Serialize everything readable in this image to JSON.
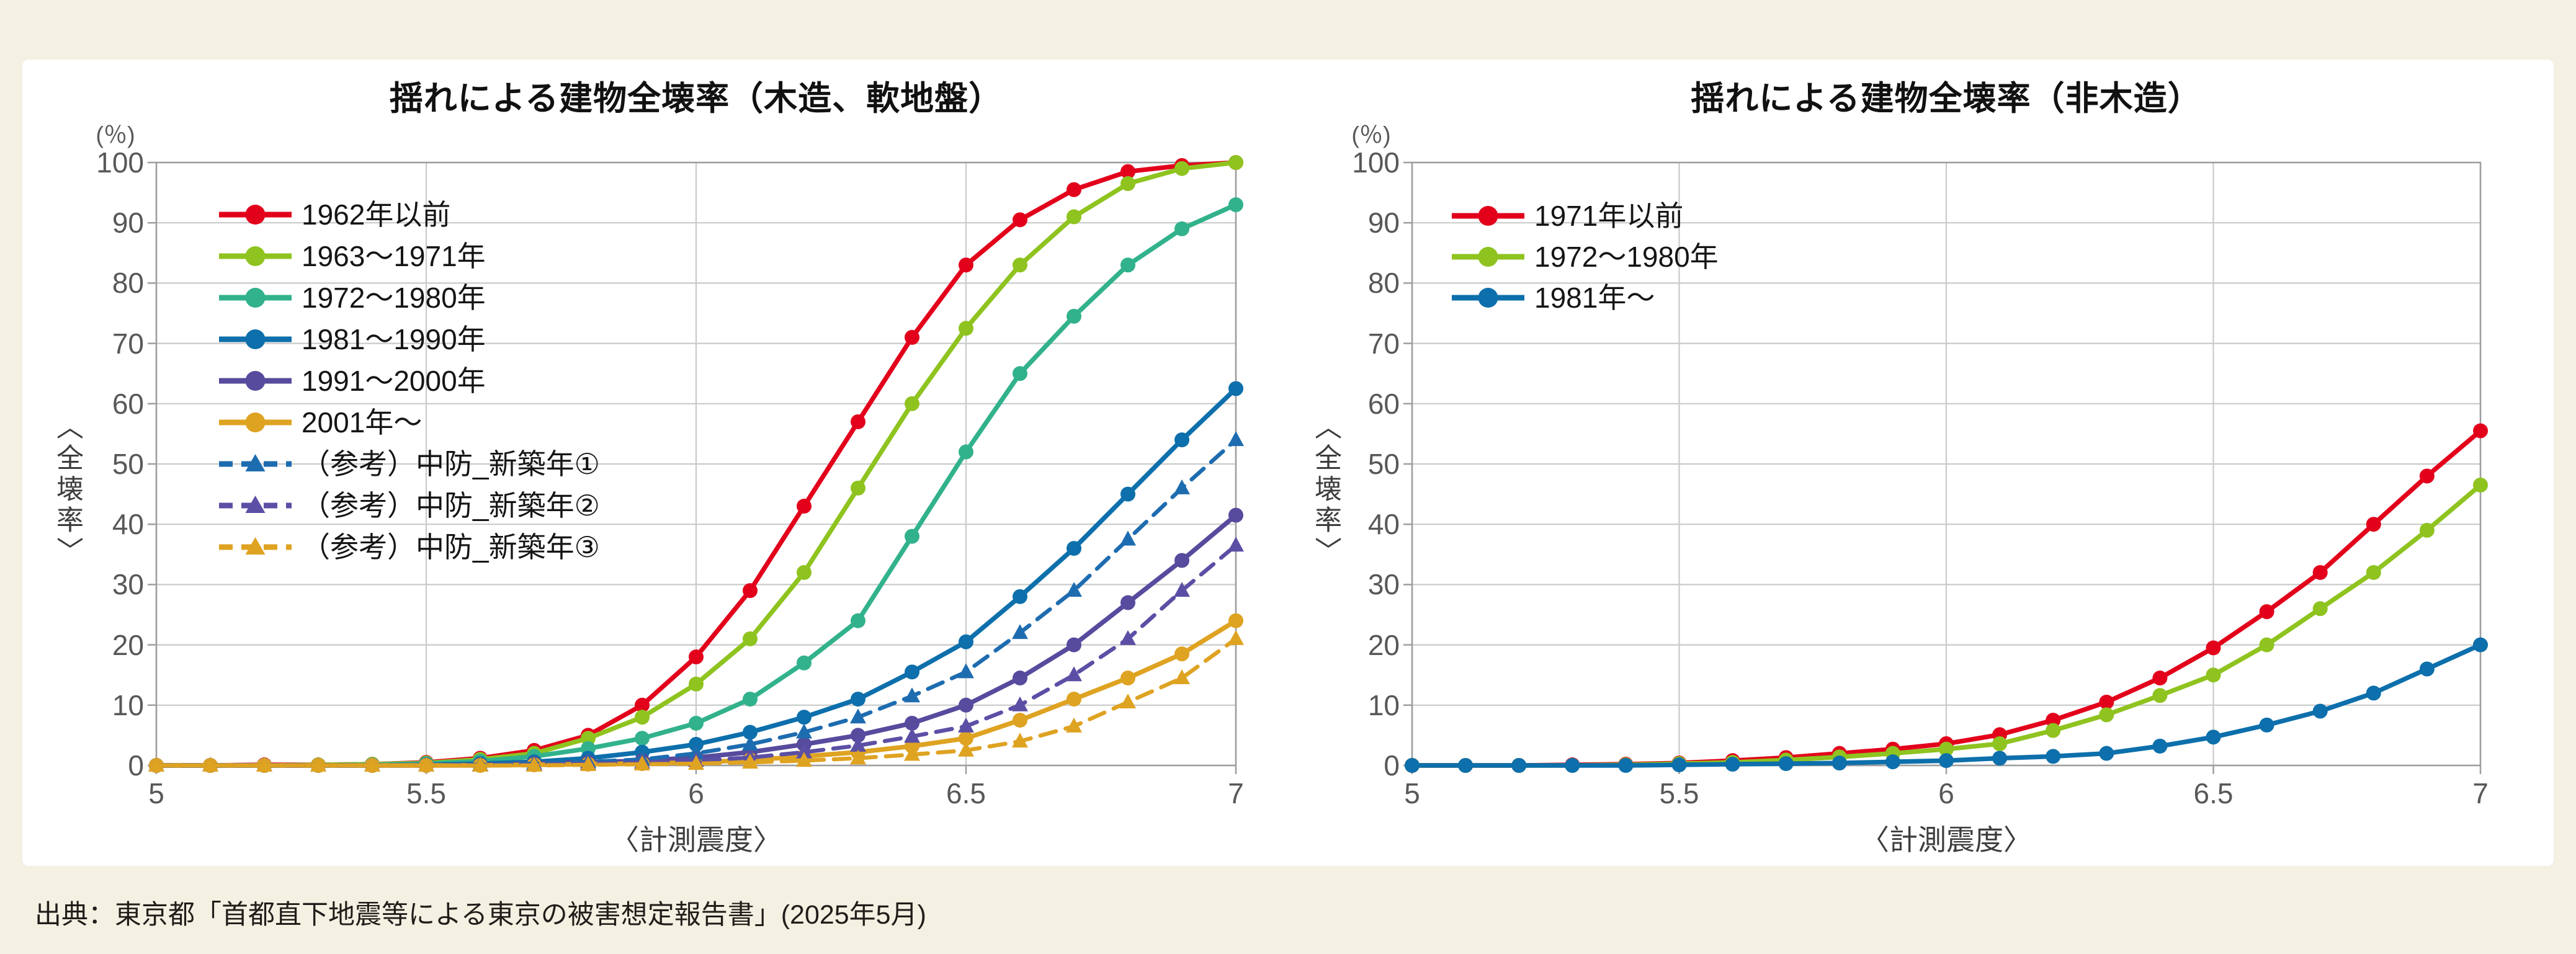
{
  "page": {
    "background": "#f4f1e3",
    "panel_background": "#ffffff",
    "grid_color": "#c9caca",
    "border_color": "#9d9e9f",
    "tick_text_color": "#595757"
  },
  "source_note": "出典：東京都「首都直下地震等による東京の被害想定報告書」(2025年5月)",
  "chart_data": [
    {
      "type": "line",
      "title": "揺れによる建物全壊率（木造、軟地盤）",
      "y_unit": "(％)",
      "ylabel": "〈全壊率〉",
      "xlabel": "〈計測震度〉",
      "xlim": [
        5,
        7
      ],
      "ylim": [
        0,
        100
      ],
      "grid": true,
      "legend_position": "top-left-inside",
      "x_start": 5.0,
      "x_step": 0.1,
      "x_ticks": [
        5,
        5.5,
        6,
        6.5,
        7
      ],
      "x_tick_labels": [
        "5",
        "5.5",
        "6",
        "6.5",
        "7"
      ],
      "y_ticks": [
        0,
        10,
        20,
        30,
        40,
        50,
        60,
        70,
        80,
        90,
        100
      ],
      "y_tick_labels": [
        "0",
        "10",
        "20",
        "30",
        "40",
        "50",
        "60",
        "70",
        "80",
        "90",
        "100"
      ],
      "series": [
        {
          "name": "1962年以前",
          "color": "#e2001b",
          "style": "solid",
          "marker": "circle",
          "values": [
            0,
            0,
            0.1,
            0.1,
            0.2,
            0.5,
            1.2,
            2.5,
            5,
            10,
            18,
            29,
            43,
            57,
            71,
            83,
            90.5,
            95.5,
            98.5,
            99.5,
            100
          ]
        },
        {
          "name": "1963～1971年",
          "color": "#8fc31f",
          "style": "solid",
          "marker": "circle",
          "values": [
            0,
            0,
            0,
            0.1,
            0.2,
            0.4,
            1,
            2,
            4.5,
            8,
            13.5,
            21,
            32,
            46,
            60,
            72.5,
            83,
            91,
            96.5,
            99,
            100
          ]
        },
        {
          "name": "1972～1980年",
          "color": "#32b28c",
          "style": "solid",
          "marker": "circle",
          "values": [
            0,
            0,
            0,
            0,
            0.1,
            0.3,
            0.7,
            1.5,
            2.8,
            4.5,
            7,
            11,
            17,
            24,
            38,
            52,
            65,
            74.5,
            83,
            89,
            93
          ]
        },
        {
          "name": "1981～1990年",
          "color": "#0d6fab",
          "style": "solid",
          "marker": "circle",
          "values": [
            0,
            0,
            0,
            0,
            0,
            0.1,
            0.3,
            0.6,
            1.2,
            2.2,
            3.5,
            5.5,
            8,
            11,
            15.5,
            20.5,
            28,
            36,
            45,
            54,
            62.5
          ]
        },
        {
          "name": "1991～2000年",
          "color": "#564b9d",
          "style": "solid",
          "marker": "circle",
          "values": [
            0,
            0,
            0,
            0,
            0,
            0,
            0.1,
            0.3,
            0.5,
            0.8,
            1.3,
            2.2,
            3.5,
            5,
            7,
            10,
            14.5,
            20,
            27,
            34,
            41.5
          ]
        },
        {
          "name": "2001年～",
          "color": "#dfa322",
          "style": "solid",
          "marker": "circle",
          "values": [
            0,
            0,
            0,
            0,
            0,
            0,
            0,
            0.1,
            0.2,
            0.3,
            0.5,
            0.9,
            1.5,
            2.2,
            3.2,
            4.5,
            7.5,
            11,
            14.5,
            18.5,
            24
          ]
        },
        {
          "name": "（参考）中防_新築年①",
          "color": "#1e6cb0",
          "style": "dashed",
          "marker": "triangle",
          "values": [
            0,
            0,
            0,
            0,
            0,
            0,
            0.1,
            0.3,
            0.6,
            1,
            2,
            3.5,
            5.5,
            8,
            11.5,
            15.5,
            22,
            29,
            37.5,
            46,
            54
          ]
        },
        {
          "name": "（参考）中防_新築年②",
          "color": "#5b4fa5",
          "style": "dashed",
          "marker": "triangle",
          "values": [
            0,
            0,
            0,
            0,
            0,
            0,
            0,
            0.1,
            0.3,
            0.5,
            0.8,
            1.3,
            2.2,
            3.3,
            4.8,
            6.5,
            10,
            15,
            21,
            29,
            36.5
          ]
        },
        {
          "name": "（参考）中防_新築年③",
          "color": "#dfa322",
          "style": "dashed",
          "marker": "triangle",
          "values": [
            0,
            0,
            0,
            0,
            0,
            0,
            0,
            0,
            0.1,
            0.2,
            0.3,
            0.5,
            0.8,
            1.2,
            1.8,
            2.5,
            4,
            6.5,
            10.5,
            14.5,
            21
          ]
        }
      ]
    },
    {
      "type": "line",
      "title": "揺れによる建物全壊率（非木造）",
      "y_unit": "(％)",
      "ylabel": "〈全壊率〉",
      "xlabel": "〈計測震度〉",
      "xlim": [
        5,
        7
      ],
      "ylim": [
        0,
        100
      ],
      "grid": true,
      "legend_position": "top-left-inside",
      "x_start": 5.0,
      "x_step": 0.1,
      "x_ticks": [
        5,
        5.5,
        6,
        6.5,
        7
      ],
      "x_tick_labels": [
        "5",
        "5.5",
        "6",
        "6.5",
        "7"
      ],
      "y_ticks": [
        0,
        10,
        20,
        30,
        40,
        50,
        60,
        70,
        80,
        90,
        100
      ],
      "y_tick_labels": [
        "0",
        "10",
        "20",
        "30",
        "40",
        "50",
        "60",
        "70",
        "80",
        "90",
        "100"
      ],
      "series": [
        {
          "name": "1971年以前",
          "color": "#e2001b",
          "style": "solid",
          "marker": "circle",
          "values": [
            0,
            0,
            0,
            0.1,
            0.2,
            0.4,
            0.8,
            1.3,
            2,
            2.7,
            3.6,
            5.1,
            7.5,
            10.5,
            14.5,
            19.5,
            25.5,
            32,
            40,
            48,
            55.5
          ]
        },
        {
          "name": "1972～1980年",
          "color": "#8fc31f",
          "style": "solid",
          "marker": "circle",
          "values": [
            0,
            0,
            0,
            0,
            0.1,
            0.3,
            0.5,
            0.9,
            1.4,
            2,
            2.7,
            3.6,
            5.8,
            8.4,
            11.6,
            15,
            20,
            26,
            32,
            39,
            46.5
          ]
        },
        {
          "name": "1981年～",
          "color": "#0d6fab",
          "style": "solid",
          "marker": "circle",
          "values": [
            0,
            0,
            0,
            0,
            0,
            0.1,
            0.2,
            0.3,
            0.4,
            0.6,
            0.8,
            1.2,
            1.5,
            2,
            3.2,
            4.7,
            6.7,
            9,
            12,
            16,
            20
          ]
        }
      ]
    }
  ]
}
